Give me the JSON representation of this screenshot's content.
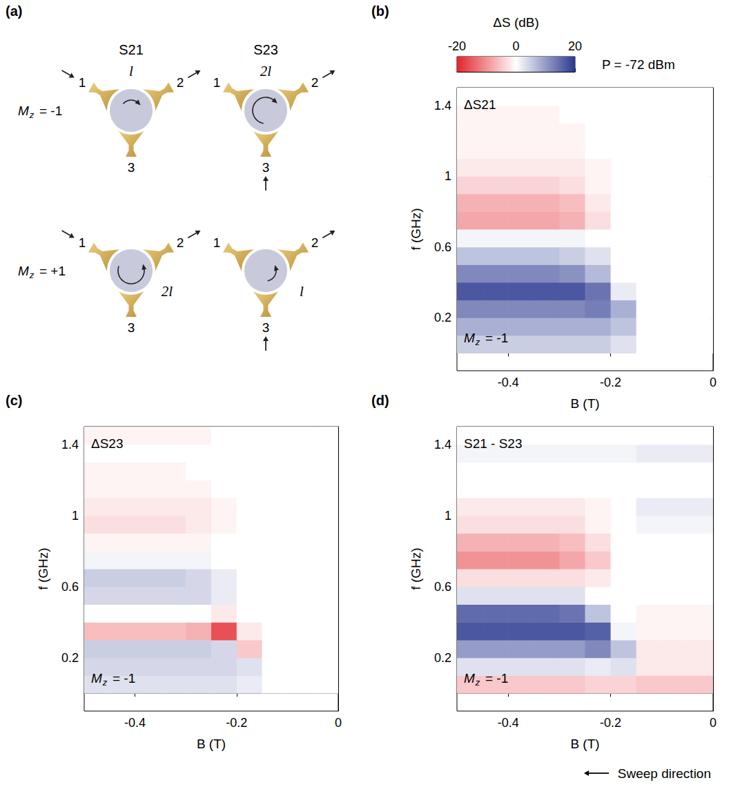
{
  "panel_labels": [
    "(a)",
    "(b)",
    "(c)",
    "(d)"
  ],
  "diagram": {
    "columns": [
      "S21",
      "S23"
    ],
    "ports": [
      "1",
      "2",
      "3"
    ],
    "rows": [
      {
        "symbol": "M",
        "subscript": "z",
        "text": "= -1"
      },
      {
        "symbol": "M",
        "subscript": "z",
        "text": "= +1"
      }
    ],
    "path_labels": [
      [
        "l",
        "2l"
      ],
      [
        "2l",
        "l"
      ]
    ]
  },
  "colorbar": {
    "label": "ΔS (dB)",
    "range": [
      -20,
      20
    ],
    "ticks": [
      -20,
      0,
      20
    ],
    "colors": [
      "#e3242b",
      "#ffffff",
      "#2b3990"
    ]
  },
  "power_label": "P = -72 dBm",
  "sweep_label": "Sweep direction",
  "chart_data": [
    {
      "type": "heatmap",
      "title": "ΔS21",
      "annotation": {
        "symbol": "M",
        "subscript": "z",
        "text": "= -1"
      },
      "xlabel": "B (T)",
      "ylabel": "f (GHz)",
      "xlim": [
        -0.5,
        0
      ],
      "ylim": [
        -0.1,
        1.5
      ],
      "xticks": [
        -0.4,
        -0.2,
        0
      ],
      "yticks": [
        0.2,
        0.6,
        1,
        1.4
      ],
      "grid": false,
      "x": [
        -0.475,
        -0.425,
        -0.375,
        -0.325,
        -0.275,
        -0.225,
        -0.175,
        -0.125,
        -0.075,
        -0.025
      ],
      "y": [
        0.05,
        0.15,
        0.25,
        0.35,
        0.45,
        0.55,
        0.65,
        0.75,
        0.85,
        0.95,
        1.05,
        1.15,
        1.25,
        1.35,
        1.45
      ],
      "values": [
        [
          5,
          5,
          5,
          5,
          5,
          5,
          3,
          0,
          0,
          0
        ],
        [
          8,
          8,
          8,
          8,
          8,
          8,
          6,
          0,
          0,
          0
        ],
        [
          12,
          12,
          12,
          12,
          12,
          13,
          8,
          0,
          0,
          0
        ],
        [
          17,
          17,
          17,
          17,
          17,
          14,
          2,
          0,
          0,
          0
        ],
        [
          12,
          12,
          12,
          12,
          11,
          7,
          0,
          0,
          0,
          0
        ],
        [
          6,
          6,
          6,
          6,
          5,
          3,
          0,
          0,
          0,
          0
        ],
        [
          1,
          1,
          1,
          1,
          1,
          0,
          0,
          0,
          0,
          0
        ],
        [
          -8,
          -8,
          -8,
          -8,
          -7,
          -3,
          0,
          0,
          0,
          0
        ],
        [
          -7,
          -7,
          -7,
          -7,
          -6,
          -2,
          0,
          0,
          0,
          0
        ],
        [
          -4,
          -4,
          -4,
          -4,
          -3,
          -1,
          0,
          0,
          0,
          0
        ],
        [
          -2,
          -2,
          -2,
          -2,
          -2,
          -1,
          0,
          0,
          0,
          0
        ],
        [
          -1,
          -1,
          -1,
          -1,
          -1,
          0,
          0,
          0,
          0,
          0
        ],
        [
          -1,
          -1,
          -1,
          -1,
          -1,
          0,
          0,
          0,
          0,
          0
        ],
        [
          -1,
          -1,
          -1,
          -1,
          0,
          0,
          0,
          0,
          0,
          0
        ],
        [
          0,
          0,
          0,
          0,
          0,
          0,
          0,
          0,
          0,
          0
        ]
      ]
    },
    {
      "type": "heatmap",
      "title": "ΔS23",
      "annotation": {
        "symbol": "M",
        "subscript": "z",
        "text": "= -1"
      },
      "xlabel": "B (T)",
      "ylabel": "f (GHz)",
      "xlim": [
        -0.5,
        0
      ],
      "ylim": [
        -0.1,
        1.5
      ],
      "xticks": [
        -0.4,
        -0.2,
        0
      ],
      "yticks": [
        0.2,
        0.6,
        1,
        1.4
      ],
      "grid": false,
      "x": [
        -0.475,
        -0.425,
        -0.375,
        -0.325,
        -0.275,
        -0.225,
        -0.175,
        -0.125,
        -0.075,
        -0.025
      ],
      "y": [
        0.05,
        0.15,
        0.25,
        0.35,
        0.45,
        0.55,
        0.65,
        0.75,
        0.85,
        0.95,
        1.05,
        1.15,
        1.25,
        1.35,
        1.45
      ],
      "values": [
        [
          3,
          3,
          3,
          3,
          3,
          3,
          2,
          0,
          0,
          0
        ],
        [
          4,
          4,
          4,
          4,
          4,
          4,
          3,
          0,
          0,
          0
        ],
        [
          5,
          5,
          5,
          5,
          5,
          4,
          -5,
          0,
          0,
          0
        ],
        [
          -6,
          -6,
          -6,
          -6,
          -7,
          -16,
          -2,
          0,
          0,
          0
        ],
        [
          0,
          0,
          0,
          0,
          0,
          -2,
          0,
          0,
          0,
          0
        ],
        [
          4,
          4,
          4,
          4,
          4,
          2,
          0,
          0,
          0,
          0
        ],
        [
          5,
          5,
          5,
          5,
          4,
          2,
          0,
          0,
          0,
          0
        ],
        [
          1,
          1,
          1,
          1,
          1,
          0,
          0,
          0,
          0,
          0
        ],
        [
          -1,
          -1,
          -1,
          -1,
          -1,
          0,
          0,
          0,
          0,
          0
        ],
        [
          -3,
          -3,
          -3,
          -3,
          -2,
          -1,
          0,
          0,
          0,
          0
        ],
        [
          -2,
          -2,
          -2,
          -2,
          -2,
          -1,
          0,
          0,
          0,
          0
        ],
        [
          -1,
          -1,
          -1,
          -1,
          -1,
          0,
          0,
          0,
          0,
          0
        ],
        [
          -1,
          -1,
          -1,
          -1,
          0,
          0,
          0,
          0,
          0,
          0
        ],
        [
          0,
          0,
          0,
          0,
          0,
          0,
          0,
          0,
          0,
          0
        ],
        [
          -1,
          -1,
          -1,
          -1,
          -1,
          0,
          0,
          0,
          0,
          0
        ]
      ]
    },
    {
      "type": "heatmap",
      "title": "S21 - S23",
      "annotation": {
        "symbol": "M",
        "subscript": "z",
        "text": "= -1"
      },
      "xlabel": "B (T)",
      "ylabel": "f (GHz)",
      "xlim": [
        -0.5,
        0
      ],
      "ylim": [
        -0.1,
        1.5
      ],
      "xticks": [
        -0.4,
        -0.2,
        0
      ],
      "yticks": [
        0.2,
        0.6,
        1,
        1.4
      ],
      "grid": false,
      "x": [
        -0.475,
        -0.425,
        -0.375,
        -0.325,
        -0.275,
        -0.225,
        -0.175,
        -0.125,
        -0.075,
        -0.025
      ],
      "y": [
        0.05,
        0.15,
        0.25,
        0.35,
        0.45,
        0.55,
        0.65,
        0.75,
        0.85,
        0.95,
        1.05,
        1.15,
        1.25,
        1.35,
        1.45
      ],
      "values": [
        [
          -5,
          -5,
          -5,
          -5,
          -5,
          -4,
          -4,
          -5,
          -5,
          -5
        ],
        [
          3,
          3,
          3,
          3,
          3,
          2,
          3,
          -2,
          -2,
          -2
        ],
        [
          10,
          10,
          10,
          10,
          10,
          12,
          6,
          -2,
          -2,
          -2
        ],
        [
          17,
          17,
          17,
          17,
          17,
          16,
          1,
          -1,
          -1,
          -1
        ],
        [
          15,
          15,
          15,
          15,
          14,
          6,
          0,
          -1,
          -1,
          -1
        ],
        [
          3,
          3,
          3,
          3,
          3,
          0,
          0,
          0,
          0,
          0
        ],
        [
          -3,
          -3,
          -3,
          -3,
          -3,
          -2,
          0,
          0,
          0,
          0
        ],
        [
          -10,
          -10,
          -10,
          -10,
          -8,
          -5,
          0,
          0,
          0,
          0
        ],
        [
          -7,
          -7,
          -7,
          -7,
          -6,
          -3,
          0,
          0,
          0,
          0
        ],
        [
          -3,
          -3,
          -3,
          -3,
          -3,
          -1,
          0,
          1,
          1,
          1
        ],
        [
          -2,
          -2,
          -2,
          -2,
          -2,
          -1,
          0,
          2,
          2,
          2
        ],
        [
          0,
          0,
          0,
          0,
          0,
          0,
          0,
          0,
          0,
          0
        ],
        [
          0,
          0,
          0,
          0,
          0,
          0,
          0,
          0,
          0,
          0
        ],
        [
          1,
          1,
          1,
          1,
          1,
          1,
          1,
          2,
          2,
          2
        ],
        [
          0,
          0,
          0,
          0,
          0,
          0,
          0,
          0,
          0,
          0
        ]
      ]
    }
  ]
}
